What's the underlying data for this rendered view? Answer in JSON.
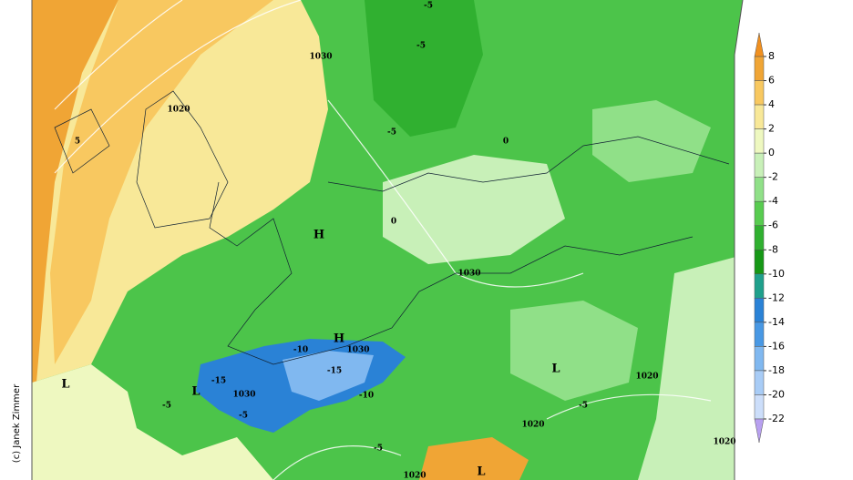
{
  "credit": "(c) Janek Zimmer",
  "colorbar": {
    "ticks": [
      8,
      6,
      4,
      2,
      0,
      -2,
      -4,
      -6,
      -8,
      -10,
      -12,
      -14,
      -16,
      -18,
      -20,
      -22
    ],
    "colors": [
      "#f0a535",
      "#f8c860",
      "#f8e898",
      "#eef8c0",
      "#c8f0b8",
      "#90e088",
      "#58cc50",
      "#30b030",
      "#169816",
      "#1fa08c",
      "#2a82d6",
      "#4898e4",
      "#80b8f0",
      "#a8ccf6",
      "#ccdefa"
    ],
    "top_color": "#f09020",
    "bottom_color": "#b8a0f0"
  },
  "map_labels": [
    "1030",
    "1020",
    "H",
    "1030",
    "H",
    "1030",
    "L",
    "1030",
    "L",
    "1020",
    "1020",
    "1020",
    "1020",
    "L",
    "L",
    "-5",
    "-5",
    "-5",
    "-10",
    "-15",
    "-10",
    "-5",
    "-5",
    "-5",
    "0",
    "0",
    "-5",
    "-15",
    "5"
  ]
}
